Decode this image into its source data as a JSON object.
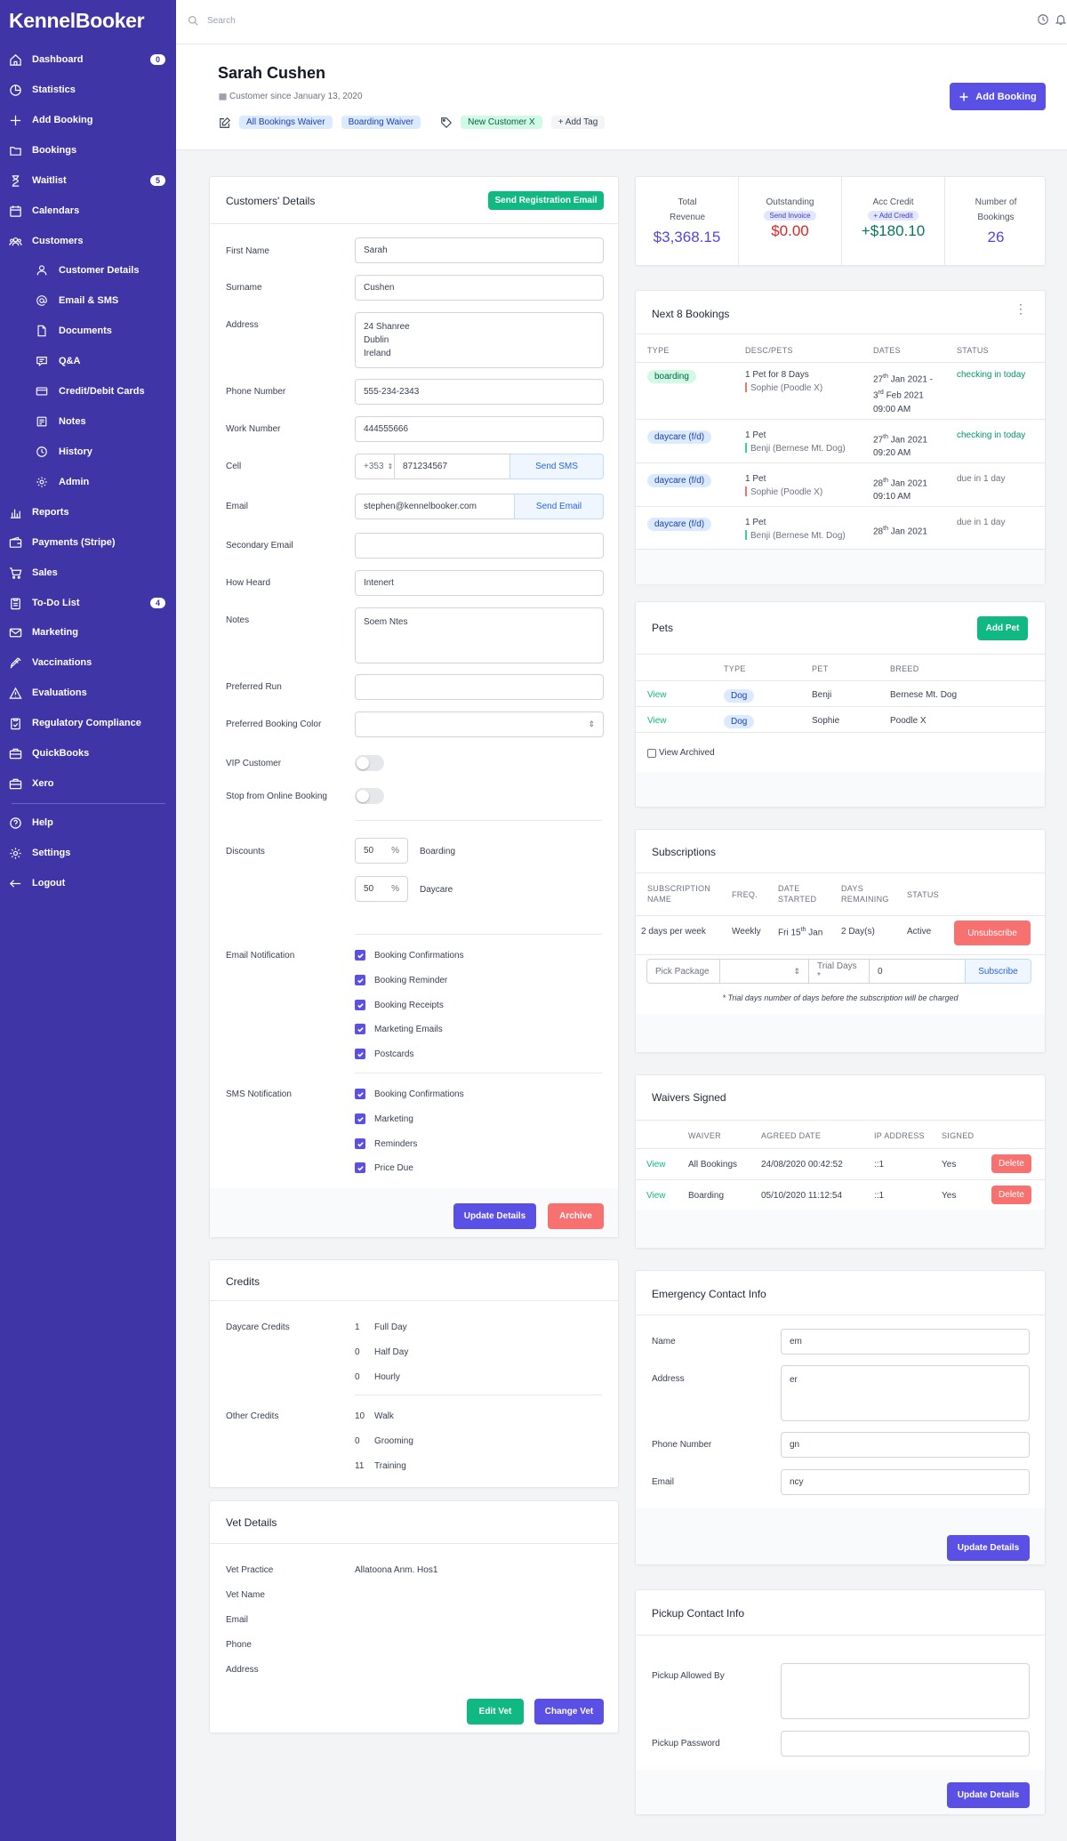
{
  "app": {
    "logo": "KennelBooker"
  },
  "sidebar": {
    "items": [
      {
        "label": "Dashboard",
        "badge": "0"
      },
      {
        "label": "Statistics"
      },
      {
        "label": "Add Booking"
      },
      {
        "label": "Bookings"
      },
      {
        "label": "Waitlist",
        "badge": "5"
      },
      {
        "label": "Calendars"
      },
      {
        "label": "Customers"
      },
      {
        "label": "Customer Details"
      },
      {
        "label": "Email & SMS"
      },
      {
        "label": "Documents"
      },
      {
        "label": "Q&A"
      },
      {
        "label": "Credit/Debit Cards"
      },
      {
        "label": "Notes"
      },
      {
        "label": "History"
      },
      {
        "label": "Admin"
      },
      {
        "label": "Reports"
      },
      {
        "label": "Payments (Stripe)"
      },
      {
        "label": "Sales"
      },
      {
        "label": "To-Do List",
        "badge": "4"
      },
      {
        "label": "Marketing"
      },
      {
        "label": "Vaccinations"
      },
      {
        "label": "Evaluations"
      },
      {
        "label": "Regulatory Compliance"
      },
      {
        "label": "QuickBooks"
      },
      {
        "label": "Xero"
      },
      {
        "label": "Help"
      },
      {
        "label": "Settings"
      },
      {
        "label": "Logout"
      }
    ]
  },
  "topbar": {
    "search_placeholder": "Search"
  },
  "header": {
    "name": "Sarah Cushen",
    "since": "Customer since January 13, 2020",
    "tags": [
      "All Bookings Waiver",
      "Boarding Waiver",
      "New Customer X",
      "+ Add Tag"
    ],
    "add_booking": "Add Booking"
  },
  "details": {
    "title": "Customers' Details",
    "send_reg": "Send Registration Email",
    "labels": {
      "first": "First Name",
      "surname": "Surname",
      "address": "Address",
      "phone": "Phone Number",
      "work": "Work Number",
      "cell": "Cell",
      "email": "Email",
      "secondary": "Secondary Email",
      "heard": "How Heard",
      "notes": "Notes",
      "run": "Preferred Run",
      "color": "Preferred Booking Color",
      "vip": "VIP Customer",
      "stop": "Stop from Online Booking",
      "discounts": "Discounts",
      "email_notif": "Email Notification",
      "sms_notif": "SMS Notification"
    },
    "values": {
      "first": "Sarah",
      "surname": "Cushen",
      "address": "24 Shanree\nDublin\nIreland",
      "phone": "555-234-2343",
      "work": "444555666",
      "cell_code": "+353",
      "cell": "871234567",
      "email": "stephen@kennelbooker.com",
      "secondary": "",
      "heard": "Intenert",
      "notes": "Soem Ntes",
      "run": "",
      "color": ""
    },
    "send_sms": "Send SMS",
    "send_email": "Send Email",
    "discounts": [
      {
        "value": "50",
        "unit": "%",
        "label": "Boarding"
      },
      {
        "value": "50",
        "unit": "%",
        "label": "Daycare"
      }
    ],
    "email_options": [
      "Booking Confirmations",
      "Booking Reminder",
      "Booking Receipts",
      "Marketing Emails",
      "Postcards"
    ],
    "sms_options": [
      "Booking Confirmations",
      "Marketing",
      "Reminders",
      "Price Due"
    ],
    "update": "Update Details",
    "archive": "Archive"
  },
  "credits": {
    "title": "Credits",
    "daycare_label": "Daycare Credits",
    "daycare": [
      {
        "n": "1",
        "l": "Full Day"
      },
      {
        "n": "0",
        "l": "Half Day"
      },
      {
        "n": "0",
        "l": "Hourly"
      }
    ],
    "other_label": "Other Credits",
    "other": [
      {
        "n": "10",
        "l": "Walk"
      },
      {
        "n": "0",
        "l": "Grooming"
      },
      {
        "n": "11",
        "l": "Training"
      }
    ]
  },
  "vet": {
    "title": "Vet Details",
    "labels": [
      "Vet Practice",
      "Vet Name",
      "Email",
      "Phone",
      "Address"
    ],
    "practice": "Allatoona Anm. Hos1",
    "edit": "Edit Vet",
    "change": "Change Vet"
  },
  "stats": [
    {
      "label": "Total Revenue",
      "value": "$3,368.15",
      "color": "#4f46e5"
    },
    {
      "label": "Outstanding",
      "action": "Send Invoice",
      "value": "$0.00",
      "color": "#dc2626"
    },
    {
      "label": "Acc Credit",
      "action": "+ Add Credit",
      "value": "+$180.10",
      "color": "#047857"
    },
    {
      "label": "Number of Bookings",
      "value": "26",
      "color": "#4f46e5"
    }
  ],
  "next": {
    "title": "Next 8 Bookings",
    "headers": [
      "TYPE",
      "DESC/PETS",
      "DATES",
      "STATUS"
    ],
    "rows": [
      {
        "type": "boarding",
        "desc": "1 Pet for 8 Days",
        "pet": "Sophie (Poodle X)",
        "petcolor": "#f87171",
        "d1a": "27",
        "d1s": "th",
        "d1b": " Jan 2021 -",
        "d2a": "3",
        "d2s": "rd",
        "d2b": " Feb 2021",
        "time": "09:00 AM",
        "status": "checking in today"
      },
      {
        "type": "daycare (f/d)",
        "desc": "1 Pet",
        "pet": "Benji (Bernese Mt. Dog)",
        "petcolor": "#34d399",
        "d1a": "27",
        "d1s": "th",
        "d1b": " Jan 2021",
        "time": "09:20 AM",
        "status": "checking in today"
      },
      {
        "type": "daycare (f/d)",
        "desc": "1 Pet",
        "pet": "Sophie (Poodle X)",
        "petcolor": "#f87171",
        "d1a": "28",
        "d1s": "th",
        "d1b": " Jan 2021",
        "time": "09:10 AM",
        "status": "due in 1 day"
      },
      {
        "type": "daycare (f/d)",
        "desc": "1 Pet",
        "pet": "Benji (Bernese Mt. Dog)",
        "petcolor": "#34d399",
        "d1a": "28",
        "d1s": "th",
        "d1b": " Jan 2021",
        "time": "",
        "status": "due in 1 day"
      }
    ]
  },
  "pets": {
    "title": "Pets",
    "add": "Add Pet",
    "headers": [
      "TYPE",
      "PET",
      "BREED"
    ],
    "rows": [
      {
        "view": "View",
        "type": "Dog",
        "pet": "Benji",
        "breed": "Bernese Mt. Dog"
      },
      {
        "view": "View",
        "type": "Dog",
        "pet": "Sophie",
        "breed": "Poodle X"
      }
    ],
    "archived": "View Archived"
  },
  "subs": {
    "title": "Subscriptions",
    "headers": [
      "SUBSCRIPTION NAME",
      "FREQ.",
      "DATE STARTED",
      "DAYS REMAINING",
      "STATUS"
    ],
    "row": {
      "name": "2 days per week",
      "freq": "Weekly",
      "date": "Fri 15",
      "date_sup": "th",
      "date_end": " Jan",
      "days": "2 Day(s)",
      "status": "Active"
    },
    "unsub": "Unsubscribe",
    "pick": "Pick Package",
    "trial_label": "Trial Days *",
    "trial": "0",
    "subscribe": "Subscribe",
    "note": "* Trial days number of days before the subscription will be charged"
  },
  "waivers": {
    "title": "Waivers Signed",
    "headers": [
      "WAIVER",
      "AGREED DATE",
      "IP ADDRESS",
      "SIGNED"
    ],
    "rows": [
      {
        "view": "View",
        "waiver": "All Bookings",
        "date": "24/08/2020 00:42:52",
        "ip": "::1",
        "signed": "Yes",
        "del": "Delete"
      },
      {
        "view": "View",
        "waiver": "Boarding",
        "date": "05/10/2020 11:12:54",
        "ip": "::1",
        "signed": "Yes",
        "del": "Delete"
      }
    ]
  },
  "emergency": {
    "title": "Emergency Contact Info",
    "labels": [
      "Name",
      "Address",
      "Phone Number",
      "Email"
    ],
    "values": [
      "em",
      "er",
      "gn",
      "ncy"
    ],
    "update": "Update Details"
  },
  "pickup": {
    "title": "Pickup Contact Info",
    "labels": [
      "Pickup Allowed By",
      "Pickup Password"
    ],
    "update": "Update Details"
  }
}
